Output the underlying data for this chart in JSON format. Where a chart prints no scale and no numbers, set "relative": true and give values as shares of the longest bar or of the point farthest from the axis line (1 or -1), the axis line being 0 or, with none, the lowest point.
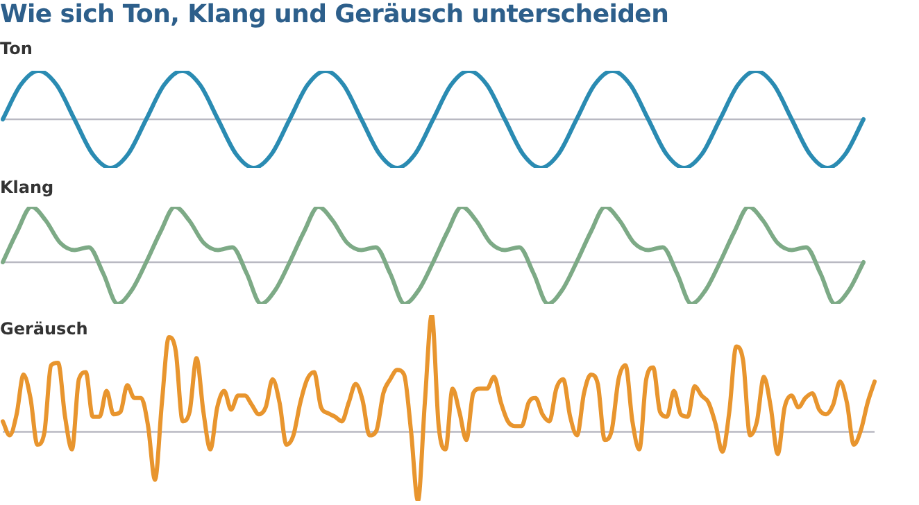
{
  "chart_data": [
    {
      "type": "other",
      "title": "Wie sich Ton, Klang und Geräusch unterscheiden"
    },
    {
      "type": "line",
      "title": "Ton",
      "relative": true,
      "categories": [
        null,
        null,
        null,
        null,
        null,
        null,
        null,
        null,
        null,
        null,
        null,
        null,
        null,
        null,
        null,
        null,
        null,
        null,
        null,
        null,
        null,
        null,
        null,
        null,
        null,
        null,
        null,
        null,
        null,
        null,
        null,
        null,
        null,
        null,
        null,
        null,
        null,
        null,
        null,
        null,
        null,
        null,
        null,
        null,
        null,
        null,
        null,
        null,
        null
      ],
      "series": [
        {
          "color": "#2a8bb2",
          "values": [
            0,
            0.71,
            1,
            0.71,
            0,
            -0.71,
            -1,
            -0.71,
            0,
            0.71,
            1,
            0.71,
            0,
            -0.71,
            -1,
            -0.71,
            0,
            0.71,
            1,
            0.71,
            0,
            -0.71,
            -1,
            -0.71,
            0,
            0.71,
            1,
            0.71,
            0,
            -0.71,
            -1,
            -0.71,
            0,
            0.71,
            1,
            0.71,
            0,
            -0.71,
            -1,
            -0.71,
            0,
            0.71,
            1,
            0.71,
            0,
            -0.71,
            -1,
            -0.71,
            0
          ]
        }
      ]
    },
    {
      "type": "line",
      "title": "Klang",
      "relative": true,
      "categories": [
        null,
        null,
        null,
        null,
        null,
        null,
        null,
        null,
        null,
        null,
        null,
        null,
        null,
        null,
        null,
        null,
        null,
        null,
        null,
        null,
        null,
        null,
        null,
        null,
        null,
        null,
        null,
        null,
        null,
        null,
        null,
        null,
        null,
        null,
        null,
        null,
        null,
        null,
        null,
        null,
        null,
        null,
        null,
        null,
        null,
        null,
        null,
        null,
        null,
        null,
        null,
        null,
        null,
        null,
        null,
        null,
        null,
        null,
        null,
        null,
        null
      ],
      "series": [
        {
          "color": "#7daa86",
          "values": [
            0,
            0.55,
            1,
            0.75,
            0.35,
            0.22,
            0.27,
            -0.2,
            -0.75,
            -0.5,
            0,
            0.55,
            1,
            0.75,
            0.35,
            0.22,
            0.27,
            -0.2,
            -0.75,
            -0.5,
            0,
            0.55,
            1,
            0.75,
            0.35,
            0.22,
            0.27,
            -0.2,
            -0.75,
            -0.5,
            0,
            0.55,
            1,
            0.75,
            0.35,
            0.22,
            0.27,
            -0.2,
            -0.75,
            -0.5,
            0,
            0.55,
            1,
            0.75,
            0.35,
            0.22,
            0.27,
            -0.2,
            -0.75,
            -0.5,
            0,
            0.55,
            1,
            0.75,
            0.35,
            0.22,
            0.27,
            -0.2,
            -0.75,
            -0.5,
            0
          ]
        }
      ]
    },
    {
      "type": "line",
      "title": "Geräusch",
      "relative": true,
      "categories": [
        null,
        null,
        null,
        null,
        null,
        null,
        null,
        null,
        null,
        null,
        null,
        null,
        null,
        null,
        null,
        null,
        null,
        null,
        null,
        null,
        null,
        null,
        null,
        null,
        null,
        null,
        null,
        null,
        null,
        null,
        null,
        null,
        null,
        null,
        null,
        null,
        null,
        null,
        null,
        null,
        null,
        null,
        null,
        null,
        null,
        null,
        null,
        null,
        null,
        null,
        null,
        null,
        null,
        null,
        null,
        null,
        null,
        null,
        null,
        null,
        null,
        null,
        null,
        null,
        null,
        null,
        null,
        null,
        null,
        null,
        null,
        null,
        null,
        null,
        null,
        null,
        null,
        null,
        null,
        null,
        null,
        null,
        null,
        null,
        null,
        null,
        null,
        null,
        null,
        null,
        null,
        null,
        null,
        null,
        null,
        null,
        null,
        null,
        null,
        null,
        null,
        null,
        null,
        null,
        null,
        null,
        null,
        null,
        null,
        null,
        null,
        null,
        null,
        null,
        null,
        null,
        null,
        null,
        null,
        null,
        null,
        null,
        null,
        null,
        null,
        null,
        null
      ],
      "series": [
        {
          "color": "#e8952e",
          "values": [
            0.09,
            -0.03,
            0.15,
            0.49,
            0.29,
            -0.11,
            -0.01,
            0.57,
            0.59,
            0.13,
            -0.15,
            0.45,
            0.51,
            0.13,
            0.13,
            0.35,
            0.15,
            0.17,
            0.4,
            0.29,
            0.29,
            0.05,
            -0.41,
            0.25,
            0.81,
            0.69,
            0.09,
            0.17,
            0.63,
            0.17,
            -0.15,
            0.21,
            0.35,
            0.19,
            0.31,
            0.31,
            0.23,
            0.15,
            0.21,
            0.45,
            0.25,
            -0.11,
            -0.03,
            0.25,
            0.45,
            0.51,
            0.21,
            0.16,
            0.13,
            0.09,
            0.25,
            0.41,
            0.27,
            -0.03,
            0.01,
            0.33,
            0.45,
            0.53,
            0.49,
            0.01,
            -0.59,
            0.25,
            1,
            0.05,
            -0.15,
            0.37,
            0.17,
            -0.07,
            0.33,
            0.37,
            0.37,
            0.47,
            0.25,
            0.09,
            0.05,
            0.05,
            0.25,
            0.29,
            0.15,
            0.09,
            0.37,
            0.45,
            0.13,
            -0.03,
            0.33,
            0.49,
            0.41,
            -0.07,
            0.01,
            0.45,
            0.57,
            0.09,
            -0.15,
            0.45,
            0.55,
            0.17,
            0.13,
            0.35,
            0.15,
            0.13,
            0.39,
            0.31,
            0.25,
            0.07,
            -0.17,
            0.17,
            0.73,
            0.61,
            -0.03,
            0.09,
            0.47,
            0.21,
            -0.19,
            0.21,
            0.31,
            0.21,
            0.29,
            0.33,
            0.19,
            0.15,
            0.23,
            0.43,
            0.25,
            -0.11,
            0.01,
            0.25,
            0.43
          ]
        }
      ]
    }
  ]
}
